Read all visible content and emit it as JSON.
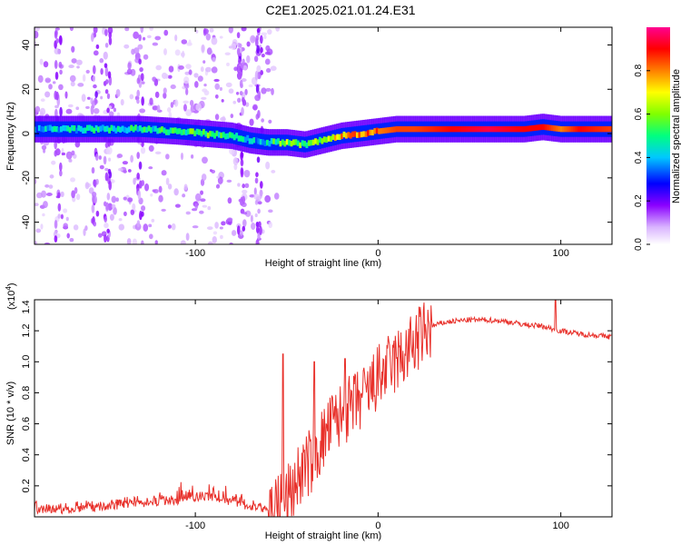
{
  "figure": {
    "title": "C2E1.2025.021.01.24.E31"
  },
  "chart_data": [
    {
      "type": "heatmap",
      "xlabel": "Height of straight line (km)",
      "ylabel": "Frequency (Hz)",
      "xlim": [
        -188,
        128
      ],
      "ylim": [
        -50,
        48
      ],
      "xticks": [
        -100,
        0,
        100
      ],
      "yticks": [
        -40,
        -20,
        0,
        20,
        40
      ],
      "colorbar": {
        "label": "Normalized spectral amplitude",
        "range": [
          0,
          1
        ],
        "ticks": [
          "0.0",
          "0.2",
          "0.4",
          "0.6",
          "0.8"
        ],
        "colors": [
          "#ffffff",
          "#d9b3ff",
          "#8a00ff",
          "#0000ff",
          "#00c8ff",
          "#00ff80",
          "#80ff00",
          "#ffff00",
          "#ff8000",
          "#ff0000",
          "#ff0090"
        ]
      },
      "ridge": {
        "x": [
          -188,
          -160,
          -130,
          -110,
          -95,
          -80,
          -70,
          -60,
          -50,
          -40,
          -30,
          -20,
          -10,
          0,
          10,
          20,
          40,
          60,
          80,
          90,
          100,
          110,
          128
        ],
        "frequency": [
          2,
          2,
          2,
          1,
          0,
          -1,
          -3,
          -4,
          -4,
          -5,
          -3,
          -1,
          0,
          1,
          2,
          2,
          2,
          2,
          2,
          3,
          2,
          2,
          2
        ],
        "amplitude": [
          0.4,
          0.45,
          0.45,
          0.5,
          0.55,
          0.45,
          0.4,
          0.45,
          0.6,
          0.55,
          0.6,
          0.75,
          0.8,
          0.8,
          0.85,
          0.85,
          0.9,
          0.95,
          0.9,
          0.9,
          0.8,
          0.9,
          0.85
        ]
      }
    },
    {
      "type": "line",
      "xlabel": "Height of straight line (km)",
      "ylabel": "SNR (10 * v/v)",
      "y_multiplier": "(x10^4)",
      "xlim": [
        -188,
        128
      ],
      "ylim": [
        0,
        14000
      ],
      "xticks": [
        -100,
        0,
        100
      ],
      "yticks": [
        2000,
        4000,
        6000,
        8000,
        10000,
        12000,
        14000
      ],
      "ytick_labels": [
        "0.2",
        "0.4",
        "0.6",
        "0.8",
        "1.0",
        "1.2",
        "1.4"
      ],
      "color": "#e8302a",
      "series": [
        {
          "x": [
            -188,
            -170,
            -150,
            -130,
            -110,
            -100,
            -90,
            -80,
            -70,
            -62,
            -55,
            -48,
            -44,
            -40,
            -35,
            -30,
            -25,
            -20,
            -15,
            -10,
            -5,
            0,
            5,
            10,
            15,
            20,
            25,
            30,
            35,
            40,
            50,
            60,
            70,
            80,
            90,
            96,
            100,
            110,
            120,
            128
          ],
          "y": [
            500,
            500,
            700,
            900,
            1100,
            1300,
            1300,
            1000,
            700,
            500,
            800,
            1500,
            2500,
            3200,
            3800,
            5000,
            6000,
            6500,
            7000,
            7500,
            8000,
            9000,
            9500,
            10000,
            10500,
            11200,
            11800,
            12300,
            12500,
            12600,
            12700,
            12700,
            12600,
            12400,
            12300,
            12100,
            12000,
            11800,
            11700,
            11600
          ]
        }
      ],
      "spikes": [
        {
          "x": -52,
          "y": 10500
        },
        {
          "x": -35,
          "y": 10000
        },
        {
          "x": -18,
          "y": 10200
        },
        {
          "x": 97,
          "y": 14000
        }
      ]
    }
  ]
}
